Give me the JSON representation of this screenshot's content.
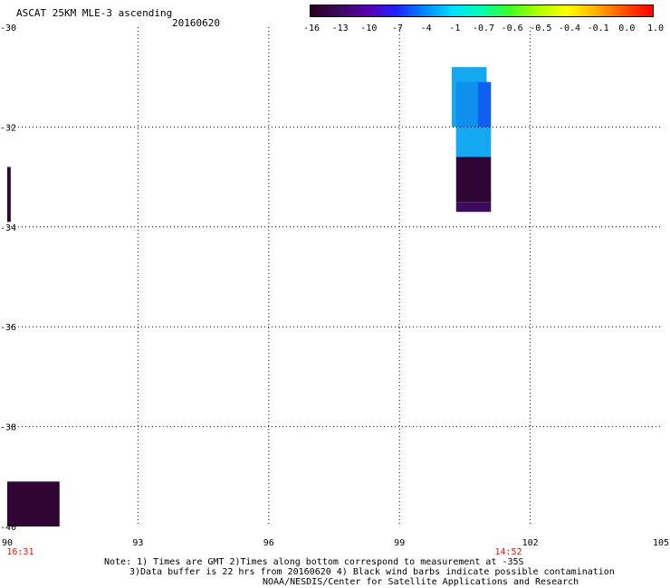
{
  "header": {
    "title": "ASCAT 25KM MLE-3 ascending",
    "date": "20160620"
  },
  "colorbar": {
    "labels": [
      "-16",
      "-13",
      "-10",
      "-7",
      "-4",
      "-1",
      "-0.7",
      "-0.6",
      "-0.5",
      "-0.4",
      "-0.1",
      "0.0",
      "1.0"
    ],
    "colors": [
      "#2a0020",
      "#3b0a5c",
      "#5a00b0",
      "#2020ff",
      "#0088ff",
      "#00e0ff",
      "#00ffb0",
      "#40ff20",
      "#b0ff00",
      "#ffff00",
      "#ffb000",
      "#ff5000",
      "#ff0000"
    ]
  },
  "map": {
    "lon_ticks": [
      "90",
      "93",
      "96",
      "99",
      "102",
      "105"
    ],
    "lat_ticks": [
      "-30",
      "-32",
      "-34",
      "-36",
      "-38",
      "-40"
    ],
    "time_labels": [
      {
        "text": "16:31",
        "lon": 90.3
      },
      {
        "text": "14:52",
        "lon": 101.5
      }
    ],
    "time_color": "#cc2200",
    "patches": [
      {
        "lon0": 100.2,
        "lon1": 101.0,
        "lat0": -32.0,
        "lat1": -30.8,
        "color": "#14a8f0"
      },
      {
        "lon0": 100.3,
        "lon1": 101.0,
        "lat0": -32.6,
        "lat1": -31.1,
        "color": "#1090ee"
      },
      {
        "lon0": 100.8,
        "lon1": 101.1,
        "lat0": -32.1,
        "lat1": -31.1,
        "color": "#1060f0"
      },
      {
        "lon0": 100.3,
        "lon1": 101.1,
        "lat0": -32.6,
        "lat1": -32.0,
        "color": "#14a8f0"
      },
      {
        "lon0": 100.3,
        "lon1": 101.1,
        "lat0": -33.5,
        "lat1": -32.6,
        "color": "#2e0533"
      },
      {
        "lon0": 100.3,
        "lon1": 101.1,
        "lat0": -33.7,
        "lat1": -33.5,
        "color": "#3a0c5a"
      },
      {
        "lon0": 90.0,
        "lon1": 90.08,
        "lat0": -33.9,
        "lat1": -32.8,
        "color": "#2e0533"
      },
      {
        "lon0": 90.0,
        "lon1": 91.2,
        "lat0": -40.0,
        "lat1": -39.1,
        "color": "#2e0533"
      }
    ]
  },
  "notes": {
    "line1": "Note: 1) Times are GMT 2)Times along bottom correspond to measurement at -35S",
    "line2": "3)Data buffer is 22 hrs from 20160620 4) Black wind barbs indicate possible contamination",
    "line3": "NOAA/NESDIS/Center for Satellite Applications and Research"
  }
}
